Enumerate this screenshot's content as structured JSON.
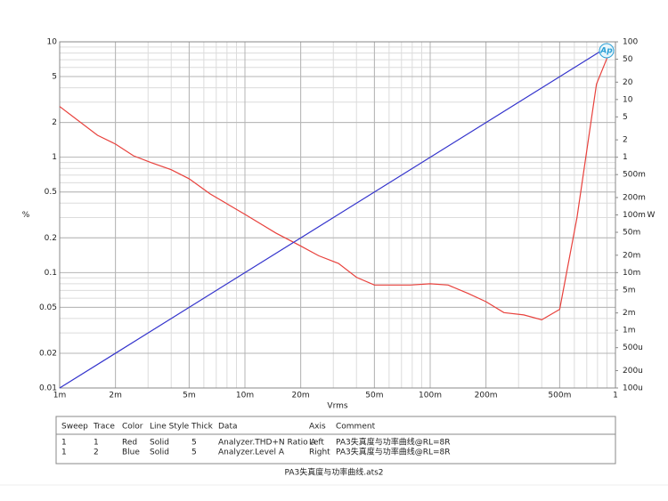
{
  "chart_data": {
    "type": "line",
    "x_label": "Vrms",
    "y_label": "%",
    "y2_label": "W",
    "logo": "Ap",
    "xscale": "log",
    "yscale": "log",
    "y2scale": "log",
    "grid": true,
    "xlim": [
      0.001,
      1
    ],
    "xticks": [
      {
        "value": 0.001,
        "label": "1m"
      },
      {
        "value": 0.002,
        "label": "2m"
      },
      {
        "value": 0.005,
        "label": "5m"
      },
      {
        "value": 0.01,
        "label": "10m"
      },
      {
        "value": 0.02,
        "label": "20m"
      },
      {
        "value": 0.05,
        "label": "50m"
      },
      {
        "value": 0.1,
        "label": "100m"
      },
      {
        "value": 0.2,
        "label": "200m"
      },
      {
        "value": 0.5,
        "label": "500m"
      },
      1
    ],
    "ylim": [
      0.01,
      10
    ],
    "yticks": [
      10,
      5,
      2,
      1,
      0.5,
      0.2,
      0.1,
      0.05,
      0.02,
      0.01
    ],
    "y2lim": [
      0.0001,
      100
    ],
    "y2ticks": [
      100,
      50,
      20,
      10,
      5,
      2,
      1,
      {
        "value": 0.5,
        "label": "500m"
      },
      {
        "value": 0.2,
        "label": "200m"
      },
      {
        "value": 0.1,
        "label": "100m"
      },
      {
        "value": 0.05,
        "label": "50m"
      },
      {
        "value": 0.02,
        "label": "20m"
      },
      {
        "value": 0.01,
        "label": "10m"
      },
      {
        "value": 0.005,
        "label": "5m"
      },
      {
        "value": 0.002,
        "label": "2m"
      },
      {
        "value": 0.001,
        "label": "1m"
      },
      {
        "value": 0.0005,
        "label": "500u"
      },
      {
        "value": 0.0002,
        "label": "200u"
      },
      {
        "value": 0.0001,
        "label": "100u"
      }
    ],
    "series": [
      {
        "color": "#e8413c",
        "x": [
          0.001,
          0.0016,
          0.002,
          0.0025,
          0.0031,
          0.004,
          0.005,
          0.0065,
          0.01,
          0.0147,
          0.02,
          0.025,
          0.032,
          0.04,
          0.05,
          0.078,
          0.1,
          0.125,
          0.16,
          0.2,
          0.25,
          0.32,
          0.4,
          0.5,
          0.62,
          0.79,
          0.93
        ],
        "values": [
          2.75,
          1.55,
          1.3,
          1.03,
          0.9,
          0.78,
          0.65,
          0.48,
          0.32,
          0.22,
          0.17,
          0.14,
          0.12,
          0.091,
          0.078,
          0.078,
          0.08,
          0.078,
          0.066,
          0.056,
          0.045,
          0.043,
          0.039,
          0.048,
          0.3,
          4.3,
          8.2
        ]
      },
      {
        "color": "#3333cc",
        "axis": "y2",
        "x": [
          0.001,
          0.93
        ],
        "values": [
          0.0001,
          86
        ]
      }
    ]
  },
  "table": {
    "headers": [
      "Sweep",
      "Trace",
      "Color",
      "Line Style",
      "Thick",
      "Data",
      "Axis",
      "Comment"
    ],
    "rows": [
      [
        "1",
        "1",
        "Red",
        "Solid",
        "5",
        "Analyzer.THD+N Ratio A",
        "Left",
        "PA3失真度与功率曲线@RL=8R"
      ],
      [
        "1",
        "2",
        "Blue",
        "Solid",
        "5",
        "Analyzer.Level A",
        "Right",
        "PA3失真度与功率曲线@RL=8R"
      ]
    ]
  },
  "footer": "PA3失真度与功率曲线.ats2"
}
